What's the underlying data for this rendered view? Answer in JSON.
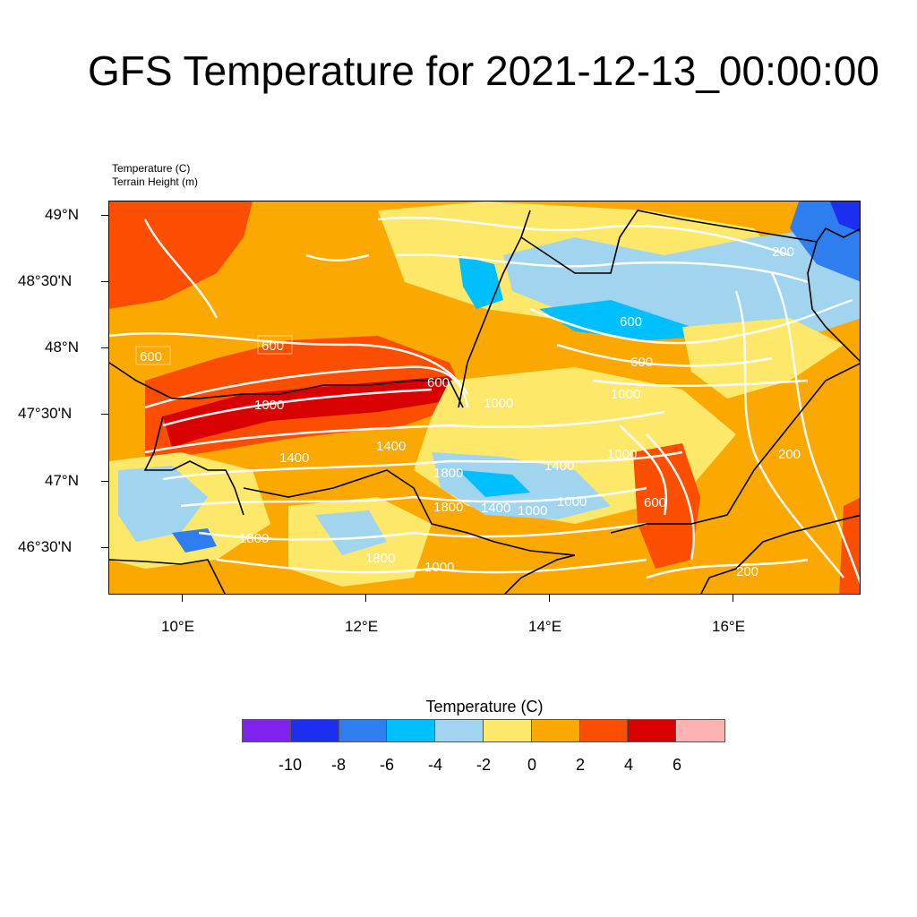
{
  "title": "GFS Temperature for 2021-12-13_00:00:00",
  "field_labels": {
    "temperature": "Temperature   (C)",
    "terrain": "Terrain Height   (m)"
  },
  "lat_ticks": [
    "49°N",
    "48°30'N",
    "48°N",
    "47°30'N",
    "47°N",
    "46°30'N"
  ],
  "lon_ticks": [
    "10°E",
    "12°E",
    "14°E",
    "16°E"
  ],
  "contour_labels": [
    "600",
    "600",
    "1000",
    "600",
    "1000",
    "1400",
    "1400",
    "1800",
    "1800",
    "1400",
    "1800",
    "1800",
    "1000",
    "1000",
    "1000",
    "600",
    "600",
    "1000",
    "600",
    "200",
    "200",
    "200",
    "1400",
    "1000"
  ],
  "colorbar": {
    "title": "Temperature  (C)",
    "colors": [
      "#7f22ee",
      "#1c2ef0",
      "#2f7ef0",
      "#00bfff",
      "#a0d4ef",
      "#fde86a",
      "#fba900",
      "#fb4e00",
      "#d80000",
      "#fdb2b2"
    ],
    "tick_labels": [
      "-10",
      "-8",
      "-6",
      "-4",
      "-2",
      "0",
      "2",
      "4",
      "6"
    ]
  },
  "palette": {
    "orange": "#fba900",
    "red_orange": "#fb4e00",
    "red": "#d80000",
    "yellow": "#fde86a",
    "light_blue": "#a0d4ef",
    "cyan": "#00bfff",
    "blue": "#2f7ef0",
    "dark_blue": "#1c2ef0"
  }
}
